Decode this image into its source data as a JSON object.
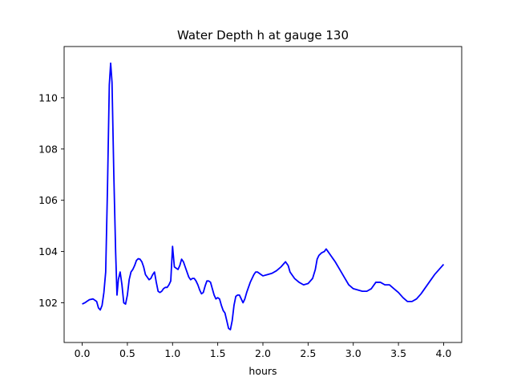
{
  "chart_data": {
    "type": "line",
    "title": "Water Depth h at gauge 130",
    "xlabel": "hours",
    "ylabel": "",
    "xlim": [
      -0.2,
      4.2
    ],
    "ylim": [
      100.45,
      112.0
    ],
    "xticks": [
      0.0,
      0.5,
      1.0,
      1.5,
      2.0,
      2.5,
      3.0,
      3.5,
      4.0
    ],
    "xtick_labels": [
      "0.0",
      "0.5",
      "1.0",
      "1.5",
      "2.0",
      "2.5",
      "3.0",
      "3.5",
      "4.0"
    ],
    "yticks": [
      102,
      104,
      106,
      108,
      110
    ],
    "ytick_labels": [
      "102",
      "104",
      "106",
      "108",
      "110"
    ],
    "grid": false,
    "series": [
      {
        "color": "#0000ff",
        "x": [
          0.0,
          0.03,
          0.05,
          0.08,
          0.12,
          0.16,
          0.18,
          0.2,
          0.22,
          0.24,
          0.26,
          0.28,
          0.3,
          0.315,
          0.33,
          0.35,
          0.37,
          0.385,
          0.4,
          0.42,
          0.44,
          0.46,
          0.48,
          0.5,
          0.52,
          0.54,
          0.56,
          0.58,
          0.6,
          0.62,
          0.64,
          0.66,
          0.68,
          0.7,
          0.72,
          0.74,
          0.76,
          0.78,
          0.8,
          0.82,
          0.84,
          0.86,
          0.88,
          0.9,
          0.92,
          0.94,
          0.96,
          0.98,
          1.0,
          1.02,
          1.04,
          1.06,
          1.08,
          1.1,
          1.12,
          1.14,
          1.16,
          1.18,
          1.2,
          1.22,
          1.24,
          1.26,
          1.28,
          1.3,
          1.32,
          1.34,
          1.36,
          1.38,
          1.4,
          1.42,
          1.44,
          1.46,
          1.48,
          1.5,
          1.52,
          1.54,
          1.56,
          1.58,
          1.6,
          1.62,
          1.64,
          1.66,
          1.68,
          1.7,
          1.72,
          1.74,
          1.76,
          1.78,
          1.8,
          1.82,
          1.84,
          1.86,
          1.88,
          1.9,
          1.92,
          1.94,
          1.96,
          1.98,
          2.0,
          2.05,
          2.1,
          2.15,
          2.2,
          2.25,
          2.28,
          2.3,
          2.35,
          2.4,
          2.45,
          2.5,
          2.55,
          2.58,
          2.6,
          2.62,
          2.65,
          2.68,
          2.7,
          2.72,
          2.75,
          2.78,
          2.8,
          2.85,
          2.9,
          2.95,
          3.0,
          3.05,
          3.1,
          3.15,
          3.2,
          3.25,
          3.3,
          3.35,
          3.4,
          3.45,
          3.5,
          3.55,
          3.6,
          3.65,
          3.7,
          3.75,
          3.8,
          3.85,
          3.9,
          3.95,
          4.0
        ],
        "y": [
          101.95,
          102.0,
          102.05,
          102.12,
          102.15,
          102.05,
          101.8,
          101.72,
          101.9,
          102.4,
          103.2,
          106.5,
          110.5,
          111.35,
          110.6,
          107.0,
          104.0,
          102.3,
          102.9,
          103.2,
          102.7,
          102.0,
          101.95,
          102.3,
          102.9,
          103.2,
          103.3,
          103.45,
          103.65,
          103.72,
          103.7,
          103.6,
          103.4,
          103.1,
          103.0,
          102.9,
          102.95,
          103.1,
          103.2,
          102.8,
          102.45,
          102.4,
          102.45,
          102.55,
          102.6,
          102.6,
          102.7,
          102.85,
          104.2,
          103.4,
          103.35,
          103.3,
          103.45,
          103.7,
          103.6,
          103.4,
          103.2,
          103.0,
          102.9,
          102.95,
          102.95,
          102.85,
          102.7,
          102.5,
          102.35,
          102.4,
          102.65,
          102.85,
          102.85,
          102.8,
          102.55,
          102.3,
          102.15,
          102.2,
          102.15,
          101.9,
          101.7,
          101.6,
          101.3,
          101.0,
          100.95,
          101.3,
          101.9,
          102.25,
          102.3,
          102.3,
          102.15,
          102.0,
          102.15,
          102.4,
          102.6,
          102.8,
          102.95,
          103.1,
          103.2,
          103.2,
          103.15,
          103.1,
          103.05,
          103.1,
          103.15,
          103.25,
          103.4,
          103.6,
          103.45,
          103.2,
          102.95,
          102.8,
          102.7,
          102.75,
          102.95,
          103.3,
          103.7,
          103.85,
          103.95,
          104.0,
          104.1,
          104.0,
          103.85,
          103.7,
          103.6,
          103.3,
          103.0,
          102.7,
          102.55,
          102.5,
          102.45,
          102.45,
          102.55,
          102.8,
          102.8,
          102.7,
          102.7,
          102.55,
          102.4,
          102.2,
          102.05,
          102.05,
          102.15,
          102.35,
          102.6,
          102.85,
          103.1,
          103.3,
          103.5
        ]
      }
    ]
  }
}
